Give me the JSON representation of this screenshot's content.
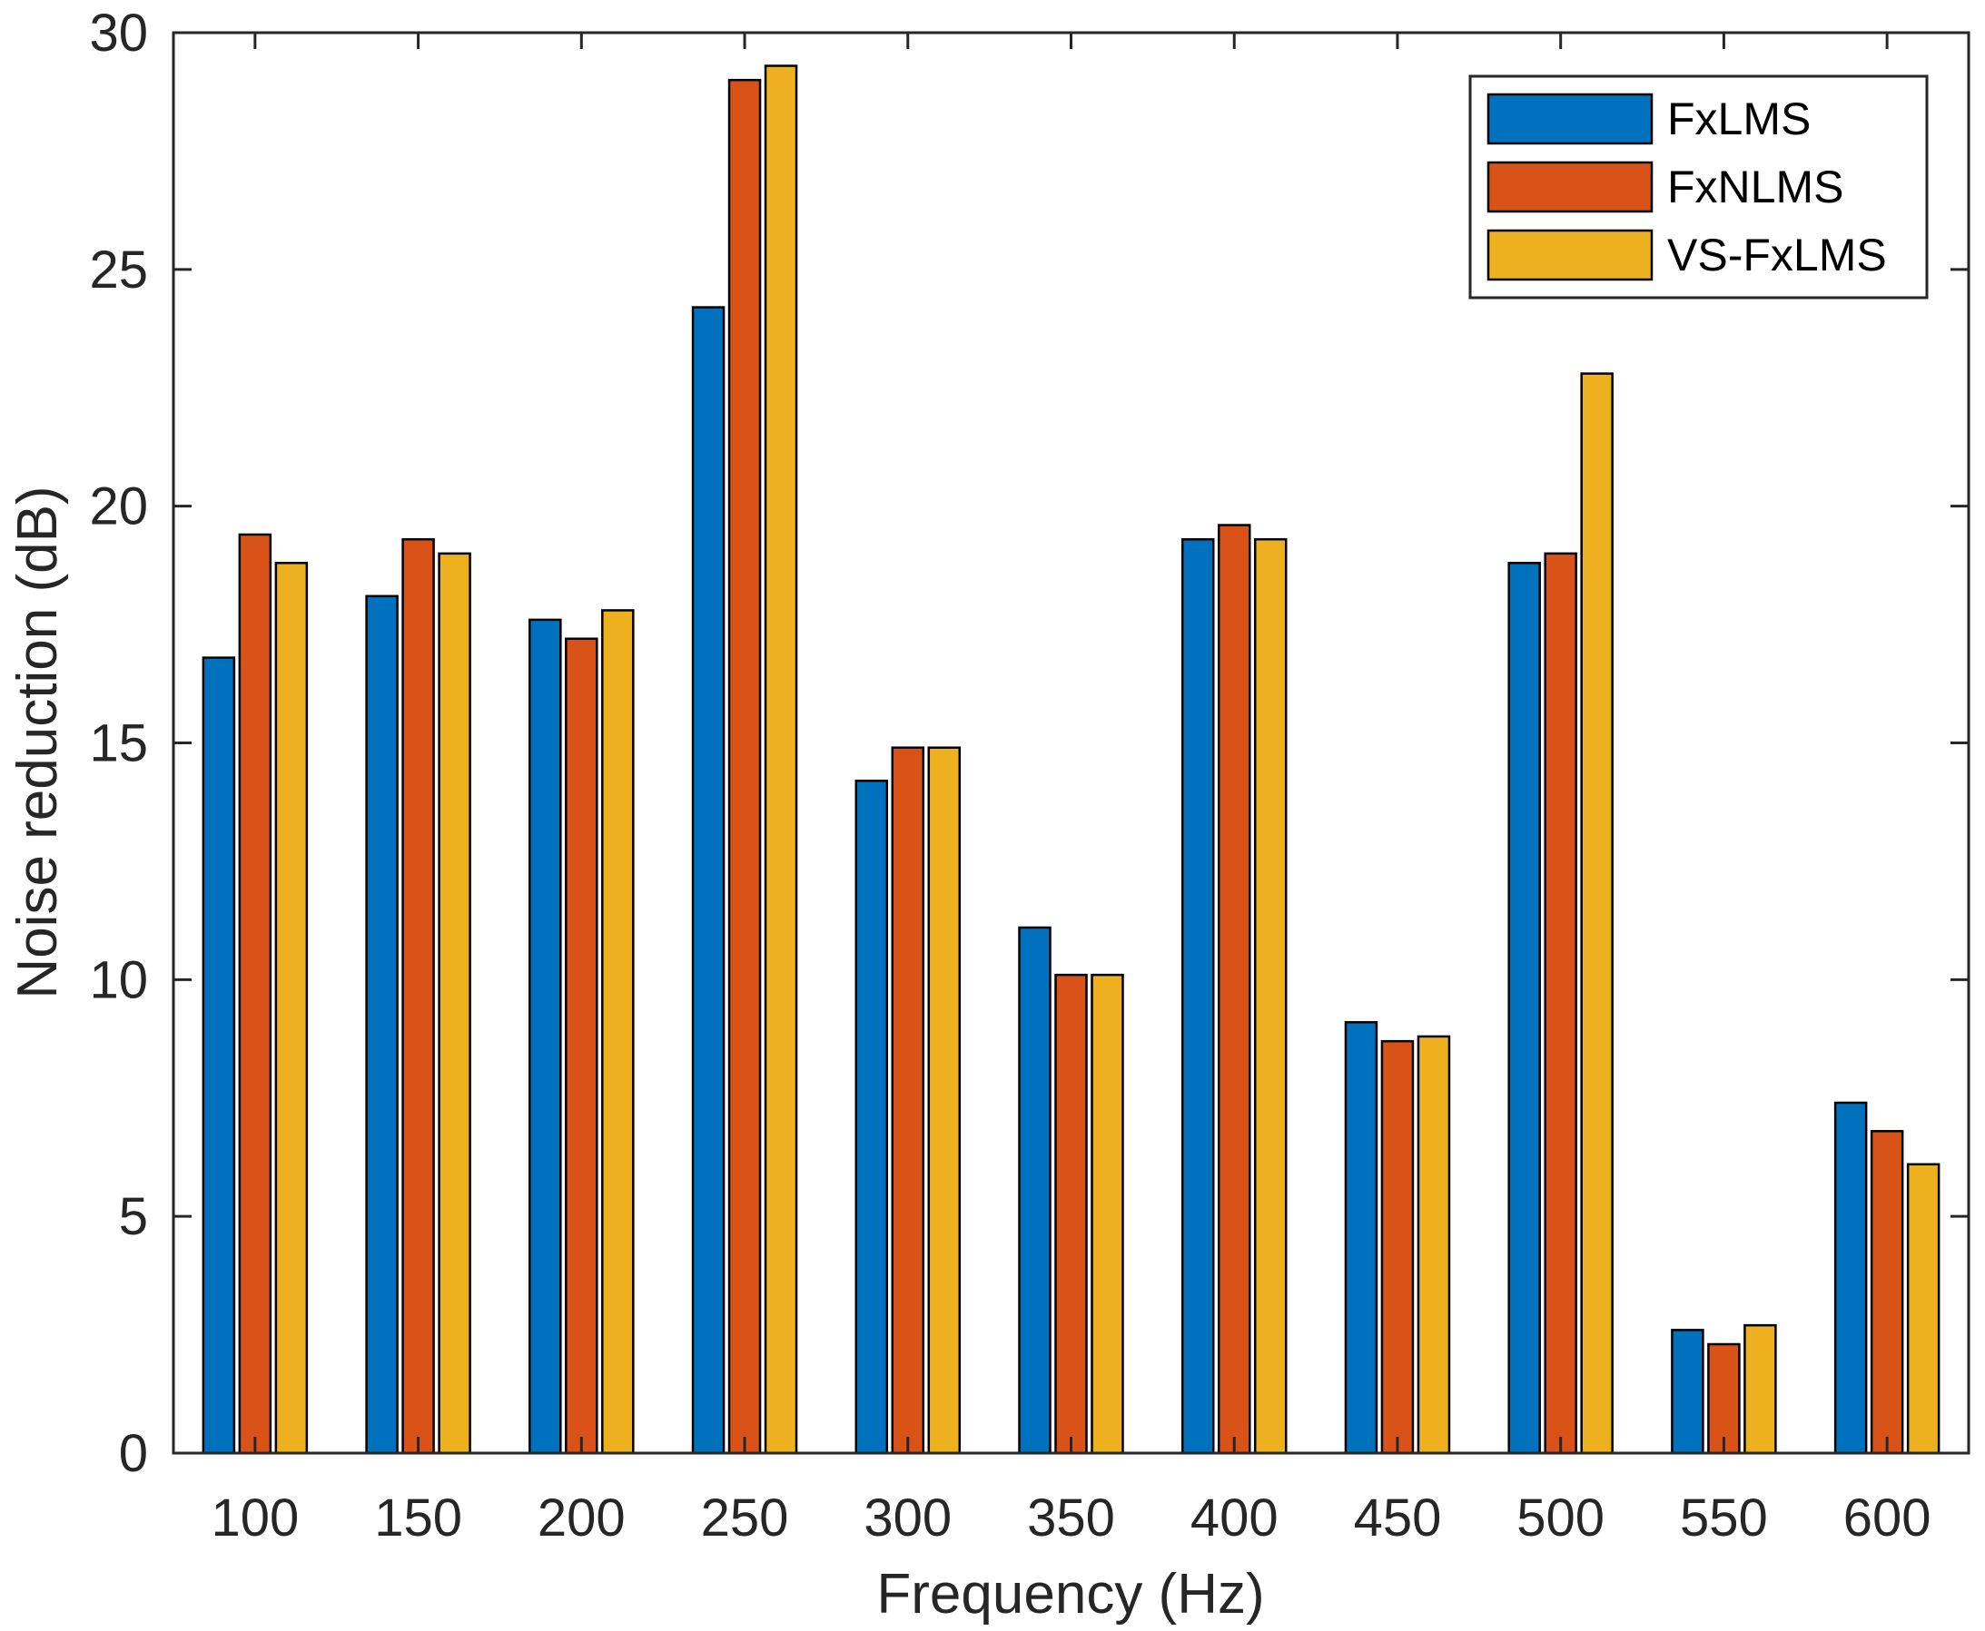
{
  "chart_data": {
    "type": "bar",
    "title": "",
    "xlabel": "Frequency (Hz)",
    "ylabel": "Noise reduction (dB)",
    "categories": [
      "100",
      "150",
      "200",
      "250",
      "300",
      "350",
      "400",
      "450",
      "500",
      "550",
      "600"
    ],
    "series": [
      {
        "name": "FxLMS",
        "color": "#0072BD",
        "values": [
          16.8,
          18.1,
          17.6,
          24.2,
          14.2,
          11.1,
          19.3,
          9.1,
          18.8,
          2.6,
          7.4
        ]
      },
      {
        "name": "FxNLMS",
        "color": "#D95319",
        "values": [
          19.4,
          19.3,
          17.2,
          29.0,
          14.9,
          10.1,
          19.6,
          8.7,
          19.0,
          2.3,
          6.8
        ]
      },
      {
        "name": "VS-FxLMS",
        "color": "#EDB120",
        "values": [
          18.8,
          19.0,
          17.8,
          29.3,
          14.9,
          10.1,
          19.3,
          8.8,
          22.8,
          2.7,
          6.1
        ]
      }
    ],
    "ylim": [
      0,
      30
    ],
    "yticks": [
      "0",
      "5",
      "10",
      "15",
      "20",
      "25",
      "30"
    ],
    "grid": false,
    "legend_position": "top-right"
  }
}
